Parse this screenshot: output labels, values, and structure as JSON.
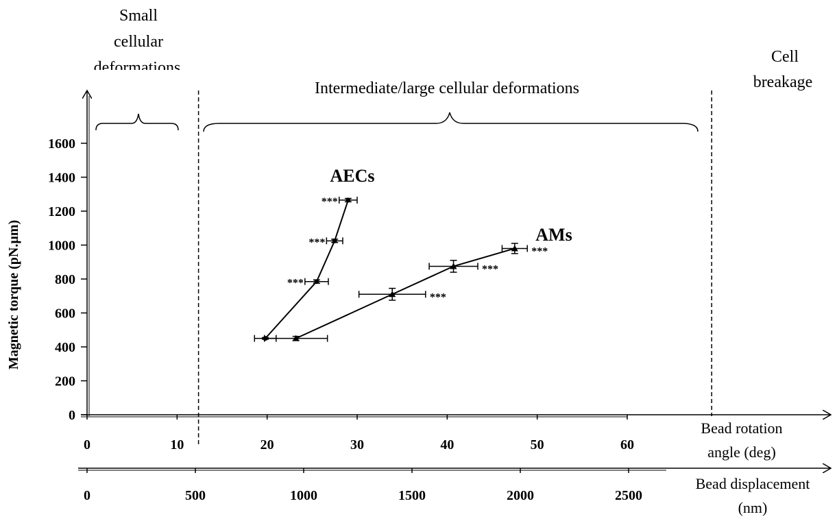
{
  "chart_data": {
    "type": "scatter",
    "regions": {
      "small_line1": "Small",
      "small_line2": "cellular",
      "small_line3": "deformations",
      "intermediate": "Intermediate/large cellular deformations",
      "breakage_line1": "Cell",
      "breakage_line2": "breakage"
    },
    "ylabel": "Magnetic torque (pN.µm)",
    "xlabel_angle_line1": "Bead rotation",
    "xlabel_angle_line2": "angle (deg)",
    "xlabel_disp_line1": "Bead displacement",
    "xlabel_disp_line2": "(nm)",
    "ylim": [
      0,
      1600
    ],
    "xlim_angle": [
      0,
      60
    ],
    "xlim_displacement": [
      0,
      2500
    ],
    "y_ticks": [
      "0",
      "200",
      "400",
      "600",
      "800",
      "1000",
      "1200",
      "1400",
      "1600"
    ],
    "angle_ticks": [
      "0",
      "10",
      "20",
      "30",
      "40",
      "50",
      "60"
    ],
    "displacement_ticks": [
      "0",
      "500",
      "1000",
      "1500",
      "2000",
      "2500"
    ],
    "region_boundaries_deg": [
      12,
      69
    ],
    "significance_mark": "***",
    "series": [
      {
        "name": "AECs",
        "marker": "circle",
        "points": [
          {
            "x": 19.8,
            "y": 450,
            "xerr": 1.2,
            "yerr": 5,
            "sig": false
          },
          {
            "x": 25.5,
            "y": 785,
            "xerr": 1.3,
            "yerr": 10,
            "sig": true
          },
          {
            "x": 27.5,
            "y": 1025,
            "xerr": 0.9,
            "yerr": 10,
            "sig": true
          },
          {
            "x": 29.0,
            "y": 1265,
            "xerr": 1.0,
            "yerr": 10,
            "sig": true
          }
        ]
      },
      {
        "name": "AMs",
        "marker": "triangle",
        "points": [
          {
            "x": 23.2,
            "y": 450,
            "xerr": 3.5,
            "yerr": 12,
            "sig": false
          },
          {
            "x": 33.9,
            "y": 710,
            "xerr": 3.7,
            "yerr": 35,
            "sig": true
          },
          {
            "x": 40.7,
            "y": 875,
            "xerr": 2.7,
            "yerr": 35,
            "sig": true
          },
          {
            "x": 47.5,
            "y": 980,
            "xerr": 1.4,
            "yerr": 30,
            "sig": true
          }
        ]
      }
    ]
  }
}
